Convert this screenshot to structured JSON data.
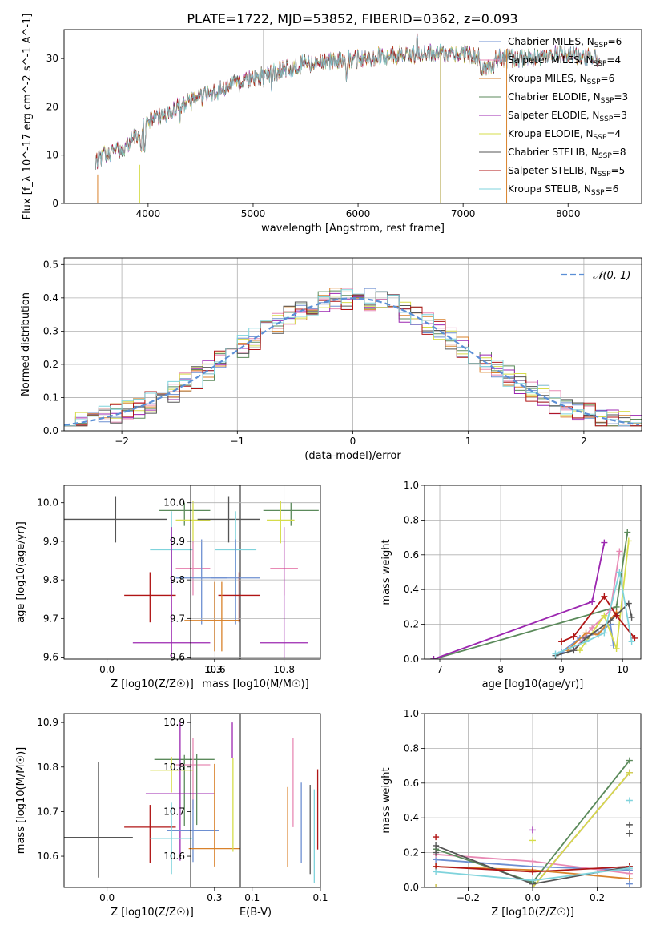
{
  "figure": {
    "title": "PLATE=1722, MJD=53852, FIBERID=0362, z=0.093"
  },
  "colors": {
    "chabrier_miles": "#6d8fd1",
    "salpeter_miles": "#e88ab5",
    "kroupa_miles": "#d9822b",
    "chabrier_elodie": "#5b8a5b",
    "salpeter_elodie": "#9c27b0",
    "kroupa_elodie": "#d6dc4a",
    "chabrier_stelib": "#555555",
    "salpeter_stelib": "#b01515",
    "kroupa_stelib": "#7fd3dc",
    "normal_curve": "#5b8fd6"
  },
  "chart_data": [
    {
      "id": "spectrum",
      "type": "line",
      "xlabel": "wavelength [Angstrom, rest frame]",
      "ylabel": "Flux [f_λ 10^-17 erg cm^-2 s^-1 A^-1]",
      "xlim": [
        3200,
        8700
      ],
      "ylim": [
        0,
        36
      ],
      "xticks": [
        4000,
        5000,
        6000,
        7000,
        8000
      ],
      "yticks": [
        0,
        10,
        20,
        30
      ],
      "legend_position": "top-right",
      "continuum": {
        "x": [
          3500,
          3800,
          4000,
          4200,
          4500,
          5000,
          5500,
          6000,
          6500,
          7000,
          7200,
          7500,
          8000,
          8300
        ],
        "y": [
          9,
          12,
          17,
          19,
          22,
          26,
          29,
          30,
          31,
          31,
          30,
          30,
          31,
          30
        ]
      },
      "series": [
        {
          "name": "Chabrier MILES",
          "nssp": "6",
          "color_key": "chabrier_miles"
        },
        {
          "name": "Salpeter MILES",
          "nssp": "4",
          "color_key": "salpeter_miles"
        },
        {
          "name": "Kroupa MILES",
          "nssp": "6",
          "color_key": "kroupa_miles"
        },
        {
          "name": "Chabrier ELODIE",
          "nssp": "3",
          "color_key": "chabrier_elodie"
        },
        {
          "name": "Salpeter ELODIE",
          "nssp": "3",
          "color_key": "salpeter_elodie"
        },
        {
          "name": "Kroupa ELODIE",
          "nssp": "4",
          "color_key": "kroupa_elodie"
        },
        {
          "name": "Chabrier STELIB",
          "nssp": "8",
          "color_key": "chabrier_stelib"
        },
        {
          "name": "Salpeter STELIB",
          "nssp": "5",
          "color_key": "salpeter_stelib"
        },
        {
          "name": "Kroupa STELIB",
          "nssp": "6",
          "color_key": "kroupa_stelib"
        }
      ]
    },
    {
      "id": "residual-histogram",
      "type": "bar",
      "xlabel": "(data-model)/error",
      "ylabel": "Normed distribution",
      "xlim": [
        -2.5,
        2.5
      ],
      "ylim": [
        0,
        0.52
      ],
      "xticks": [
        -2,
        -1,
        0,
        1,
        2
      ],
      "yticks": [
        0.0,
        0.1,
        0.2,
        0.3,
        0.4,
        0.5
      ],
      "grid": true,
      "legend": "𝒩(0, 1)",
      "legend_position": "top-right",
      "bin_width": 0.1,
      "series": [
        {
          "name": "Chabrier MILES",
          "color_key": "chabrier_miles"
        },
        {
          "name": "Salpeter MILES",
          "color_key": "salpeter_miles"
        },
        {
          "name": "Kroupa MILES",
          "color_key": "kroupa_miles"
        },
        {
          "name": "Chabrier ELODIE",
          "color_key": "chabrier_elodie"
        },
        {
          "name": "Salpeter ELODIE",
          "color_key": "salpeter_elodie"
        },
        {
          "name": "Kroupa ELODIE",
          "color_key": "kroupa_elodie"
        },
        {
          "name": "Chabrier STELIB",
          "color_key": "chabrier_stelib"
        },
        {
          "name": "Salpeter STELIB",
          "color_key": "salpeter_stelib"
        },
        {
          "name": "Kroupa STELIB",
          "color_key": "kroupa_stelib"
        }
      ]
    },
    {
      "id": "age-vs-z",
      "type": "scatter",
      "xlabel": "Z [log10(Z/Z☉)]",
      "ylabel": "age [log10(age/yr)]",
      "xlim": [
        -0.1,
        0.31
      ],
      "ylim": [
        9.595,
        10.045
      ],
      "xticks": [
        0.0,
        0.25
      ],
      "yticks": [
        9.6,
        9.7,
        9.8,
        9.9,
        10.0
      ],
      "grid": false,
      "points": [
        {
          "color_key": "chabrier_stelib",
          "x": 0.02,
          "xerr": 0.12,
          "y": 9.957,
          "yerr_lo": 0.06,
          "yerr_hi": 0.06
        },
        {
          "color_key": "chabrier_elodie",
          "x": 0.18,
          "xerr": 0.06,
          "y": 9.98,
          "yerr_lo": 0.04,
          "yerr_hi": 0.02
        },
        {
          "color_key": "kroupa_elodie",
          "x": 0.2,
          "xerr": 0.04,
          "y": 9.955,
          "yerr_lo": 0.06,
          "yerr_hi": 0.05
        },
        {
          "color_key": "kroupa_stelib",
          "x": 0.15,
          "xerr": 0.05,
          "y": 9.878,
          "yerr_lo": 0.12,
          "yerr_hi": 0.1
        },
        {
          "color_key": "salpeter_miles",
          "x": 0.2,
          "xerr": 0.04,
          "y": 9.83,
          "yerr_lo": 0.07,
          "yerr_hi": 0.07
        },
        {
          "color_key": "chabrier_miles",
          "x": 0.22,
          "xerr": 0.06,
          "y": 9.805,
          "yerr_lo": 0.12,
          "yerr_hi": 0.1
        },
        {
          "color_key": "salpeter_stelib",
          "x": 0.1,
          "xerr": 0.06,
          "y": 9.76,
          "yerr_lo": 0.07,
          "yerr_hi": 0.06
        },
        {
          "color_key": "kroupa_miles",
          "x": 0.25,
          "xerr": 0.07,
          "y": 9.695,
          "yerr_lo": 0.08,
          "yerr_hi": 0.1
        },
        {
          "color_key": "salpeter_elodie",
          "x": 0.15,
          "xerr": 0.09,
          "y": 9.637,
          "yerr_lo": 0.04,
          "yerr_hi": 0.3
        }
      ]
    },
    {
      "id": "age-vs-mass",
      "type": "scatter",
      "xlabel": "mass [log10(M/M☉)]",
      "ylabel": "",
      "xlim": [
        10.53,
        10.905
      ],
      "ylim": [
        9.595,
        10.045
      ],
      "xticks": [
        10.6,
        10.8
      ],
      "yticks": [
        9.6,
        9.7,
        9.8,
        9.9,
        10.0
      ],
      "grid": true,
      "points": [
        {
          "color_key": "chabrier_stelib",
          "x": 10.64,
          "xerr": 0.09,
          "y": 9.957,
          "yerr_lo": 0.06,
          "yerr_hi": 0.06
        },
        {
          "color_key": "chabrier_elodie",
          "x": 10.82,
          "xerr": 0.08,
          "y": 9.98,
          "yerr_lo": 0.04,
          "yerr_hi": 0.02
        },
        {
          "color_key": "kroupa_elodie",
          "x": 10.79,
          "xerr": 0.04,
          "y": 9.955,
          "yerr_lo": 0.06,
          "yerr_hi": 0.05
        },
        {
          "color_key": "kroupa_stelib",
          "x": 10.66,
          "xerr": 0.06,
          "y": 9.878,
          "yerr_lo": 0.12,
          "yerr_hi": 0.1
        },
        {
          "color_key": "salpeter_miles",
          "x": 10.8,
          "xerr": 0.04,
          "y": 9.83,
          "yerr_lo": 0.07,
          "yerr_hi": 0.07
        },
        {
          "color_key": "chabrier_miles",
          "x": 10.66,
          "xerr": 0.07,
          "y": 9.805,
          "yerr_lo": 0.12,
          "yerr_hi": 0.1
        },
        {
          "color_key": "salpeter_stelib",
          "x": 10.67,
          "xerr": 0.06,
          "y": 9.76,
          "yerr_lo": 0.07,
          "yerr_hi": 0.06
        },
        {
          "color_key": "kroupa_miles",
          "x": 10.62,
          "xerr": 0.05,
          "y": 9.695,
          "yerr_lo": 0.08,
          "yerr_hi": 0.1
        },
        {
          "color_key": "salpeter_elodie",
          "x": 10.8,
          "xerr": 0.07,
          "y": 9.637,
          "yerr_lo": 0.04,
          "yerr_hi": 0.3
        }
      ]
    },
    {
      "id": "mass-weight-vs-age",
      "type": "line",
      "xlabel": "age [log10(age/yr)]",
      "ylabel": "mass weight",
      "xlim": [
        6.75,
        10.3
      ],
      "ylim": [
        0,
        1.0
      ],
      "xticks": [
        7,
        8,
        9,
        10
      ],
      "yticks": [
        0.0,
        0.2,
        0.4,
        0.6,
        0.8,
        1.0
      ],
      "grid": true,
      "series": [
        {
          "color_key": "chabrier_miles",
          "x": [
            9.0,
            9.3,
            9.6,
            9.8,
            9.85
          ],
          "y": [
            0.04,
            0.12,
            0.15,
            0.2,
            0.08
          ]
        },
        {
          "color_key": "salpeter_miles",
          "x": [
            9.2,
            9.5,
            9.8,
            9.95
          ],
          "y": [
            0.05,
            0.18,
            0.28,
            0.62
          ]
        },
        {
          "color_key": "kroupa_miles",
          "x": [
            9.1,
            9.4,
            9.6,
            9.9
          ],
          "y": [
            0.05,
            0.15,
            0.14,
            0.27
          ]
        },
        {
          "color_key": "chabrier_elodie",
          "x": [
            6.9,
            9.9,
            10.08
          ],
          "y": [
            0.0,
            0.3,
            0.73
          ]
        },
        {
          "color_key": "salpeter_elodie",
          "x": [
            6.9,
            9.5,
            9.7
          ],
          "y": [
            0.0,
            0.33,
            0.67
          ]
        },
        {
          "color_key": "kroupa_elodie",
          "x": [
            9.3,
            9.7,
            9.9,
            10.1
          ],
          "y": [
            0.05,
            0.25,
            0.06,
            0.68
          ]
        },
        {
          "color_key": "chabrier_stelib",
          "x": [
            8.9,
            9.2,
            9.4,
            9.8,
            10.1,
            10.15
          ],
          "y": [
            0.02,
            0.05,
            0.12,
            0.22,
            0.32,
            0.24
          ]
        },
        {
          "color_key": "salpeter_stelib",
          "x": [
            9.0,
            9.2,
            9.7,
            9.9,
            10.2
          ],
          "y": [
            0.1,
            0.13,
            0.36,
            0.25,
            0.12
          ]
        },
        {
          "color_key": "kroupa_stelib",
          "x": [
            8.9,
            9.4,
            9.7,
            9.95,
            10.15
          ],
          "y": [
            0.03,
            0.1,
            0.15,
            0.5,
            0.1
          ]
        }
      ]
    },
    {
      "id": "mass-vs-z",
      "type": "scatter",
      "xlabel": "Z [log10(Z/Z☉)]",
      "ylabel": "mass [log10(M/M☉)]",
      "xlim": [
        -0.1,
        0.31
      ],
      "ylim": [
        10.53,
        10.92
      ],
      "xticks": [
        0.0,
        0.25
      ],
      "yticks": [
        10.6,
        10.7,
        10.8,
        10.9
      ],
      "grid": false,
      "points": [
        {
          "color_key": "chabrier_elodie",
          "x": 0.18,
          "xerr": 0.07,
          "y": 10.817,
          "yerr_lo": 0.15,
          "yerr_hi": 0.01
        },
        {
          "color_key": "salpeter_miles",
          "x": 0.2,
          "xerr": 0.04,
          "y": 10.805,
          "yerr_lo": 0.1,
          "yerr_hi": 0.06
        },
        {
          "color_key": "kroupa_elodie",
          "x": 0.15,
          "xerr": 0.05,
          "y": 10.793,
          "yerr_lo": 0.05,
          "yerr_hi": 0.03
        },
        {
          "color_key": "salpeter_elodie",
          "x": 0.17,
          "xerr": 0.08,
          "y": 10.74,
          "yerr_lo": 0.15,
          "yerr_hi": 0.16
        },
        {
          "color_key": "salpeter_stelib",
          "x": 0.1,
          "xerr": 0.06,
          "y": 10.665,
          "yerr_lo": 0.08,
          "yerr_hi": 0.05
        },
        {
          "color_key": "chabrier_miles",
          "x": 0.2,
          "xerr": 0.06,
          "y": 10.657,
          "yerr_lo": 0.07,
          "yerr_hi": 0.07
        },
        {
          "color_key": "kroupa_miles",
          "x": 0.25,
          "xerr": 0.06,
          "y": 10.617,
          "yerr_lo": 0.04,
          "yerr_hi": 0.19
        },
        {
          "color_key": "chabrier_stelib",
          "x": -0.02,
          "xerr": 0.08,
          "y": 10.642,
          "yerr_lo": 0.09,
          "yerr_hi": 0.17
        },
        {
          "color_key": "kroupa_stelib",
          "x": 0.15,
          "xerr": 0.05,
          "y": 10.64,
          "yerr_lo": 0.08,
          "yerr_hi": 0.08
        }
      ]
    },
    {
      "id": "mass-vs-ebv",
      "type": "scatter",
      "xlabel": "E(B-V)",
      "ylabel": "",
      "xlim": [
        0.005,
        0.1
      ],
      "ylim": [
        10.53,
        10.92
      ],
      "xticks": [
        0.05,
        0.1
      ],
      "yticks": [
        10.6,
        10.7,
        10.8,
        10.9
      ],
      "grid": false,
      "points": [
        {
          "color_key": "chabrier_elodie",
          "x": 0.0095,
          "y": 10.75,
          "yerr_lo": 0.08,
          "yerr_hi": 0.08
        },
        {
          "color_key": "salpeter_elodie",
          "x": 0.0355,
          "y": 10.86,
          "yerr_lo": 0.04,
          "yerr_hi": 0.04
        },
        {
          "color_key": "kroupa_elodie",
          "x": 0.036,
          "y": 10.72,
          "yerr_lo": 0.11,
          "yerr_hi": 0.1
        },
        {
          "color_key": "kroupa_miles",
          "x": 0.076,
          "y": 10.665,
          "yerr_lo": 0.09,
          "yerr_hi": 0.09
        },
        {
          "color_key": "salpeter_miles",
          "x": 0.08,
          "y": 10.765,
          "yerr_lo": 0.1,
          "yerr_hi": 0.1
        },
        {
          "color_key": "chabrier_miles",
          "x": 0.086,
          "y": 10.675,
          "yerr_lo": 0.09,
          "yerr_hi": 0.09
        },
        {
          "color_key": "chabrier_stelib",
          "x": 0.0925,
          "y": 10.66,
          "yerr_lo": 0.1,
          "yerr_hi": 0.1
        },
        {
          "color_key": "kroupa_stelib",
          "x": 0.0955,
          "y": 10.68,
          "yerr_lo": 0.14,
          "yerr_hi": 0.07
        },
        {
          "color_key": "salpeter_stelib",
          "x": 0.098,
          "y": 10.745,
          "yerr_lo": 0.13,
          "yerr_hi": 0.05
        }
      ]
    },
    {
      "id": "mass-weight-vs-z",
      "type": "line",
      "xlabel": "Z [log10(Z/Z☉)]",
      "ylabel": "mass weight",
      "xlim": [
        -0.335,
        0.335
      ],
      "ylim": [
        0,
        1.0
      ],
      "xticks": [
        -0.2,
        0.0,
        0.2
      ],
      "yticks": [
        0.0,
        0.2,
        0.4,
        0.6,
        0.8,
        1.0
      ],
      "grid": true,
      "series": [
        {
          "color_key": "chabrier_miles",
          "x": [
            -0.3,
            0.0,
            0.3
          ],
          "y": [
            0.16,
            0.12,
            0.1
          ]
        },
        {
          "color_key": "salpeter_miles",
          "x": [
            -0.3,
            0.0,
            0.3
          ],
          "y": [
            0.19,
            0.15,
            0.08
          ]
        },
        {
          "color_key": "kroupa_miles",
          "x": [
            -0.3,
            0.0,
            0.3
          ],
          "y": [
            0.12,
            0.1,
            0.05
          ]
        },
        {
          "color_key": "chabrier_elodie",
          "x": [
            -0.3,
            0.0,
            0.3
          ],
          "y": [
            0.22,
            0.03,
            0.73
          ]
        },
        {
          "color_key": "salpeter_elodie",
          "x": [
            -0.3,
            0.0,
            0.3
          ],
          "y": [
            0.0,
            0.0,
            0.66
          ]
        },
        {
          "color_key": "kroupa_elodie",
          "x": [
            -0.3,
            0.0,
            0.3
          ],
          "y": [
            0.0,
            0.0,
            0.66
          ]
        },
        {
          "color_key": "chabrier_stelib",
          "x": [
            -0.3,
            0.0,
            0.3
          ],
          "y": [
            0.24,
            0.02,
            0.12
          ]
        },
        {
          "color_key": "salpeter_stelib",
          "x": [
            -0.3,
            0.0,
            0.3
          ],
          "y": [
            0.12,
            0.09,
            0.12
          ]
        },
        {
          "color_key": "kroupa_stelib",
          "x": [
            -0.3,
            0.0,
            0.3
          ],
          "y": [
            0.09,
            0.04,
            0.11
          ]
        }
      ],
      "markers": [
        {
          "color_key": "salpeter_stelib",
          "x": -0.3,
          "y": 0.29
        },
        {
          "color_key": "chabrier_stelib",
          "x": -0.3,
          "y": 0.2
        },
        {
          "color_key": "salpeter_elodie",
          "x": 0.0,
          "y": 0.33
        },
        {
          "color_key": "kroupa_elodie",
          "x": 0.0,
          "y": 0.27
        },
        {
          "color_key": "kroupa_stelib",
          "x": 0.3,
          "y": 0.5
        },
        {
          "color_key": "chabrier_stelib",
          "x": 0.3,
          "y": 0.36
        },
        {
          "color_key": "chabrier_stelib",
          "x": 0.3,
          "y": 0.31
        },
        {
          "color_key": "chabrier_miles",
          "x": 0.3,
          "y": 0.02
        }
      ]
    }
  ]
}
